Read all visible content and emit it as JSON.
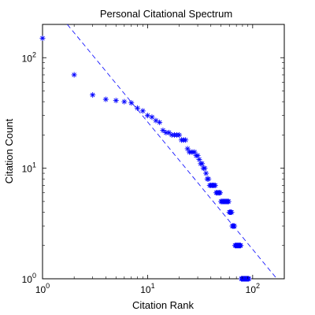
{
  "chart_data": {
    "type": "scatter",
    "title": "Personal Citational Spectrum",
    "xlabel": "Citation Rank",
    "ylabel": "Citation Count",
    "xscale": "log",
    "yscale": "log",
    "xlim": [
      1,
      200
    ],
    "ylim": [
      1,
      200
    ],
    "grid": false,
    "legend": "none",
    "x_ticks": [
      {
        "value": 1,
        "base": "10",
        "exp": "0"
      },
      {
        "value": 10,
        "base": "10",
        "exp": "1"
      },
      {
        "value": 100,
        "base": "10",
        "exp": "2"
      }
    ],
    "y_ticks": [
      {
        "value": 1,
        "base": "10",
        "exp": "0"
      },
      {
        "value": 10,
        "base": "10",
        "exp": "1"
      },
      {
        "value": 100,
        "base": "10",
        "exp": "2"
      }
    ],
    "colors": {
      "marker": "#0000ff",
      "reference_line": "#0000ff",
      "axes": "#000000"
    },
    "series": [
      {
        "marker": "asterisk",
        "points": [
          [
            1,
            150
          ],
          [
            2,
            70
          ],
          [
            3,
            46
          ],
          [
            4,
            42
          ],
          [
            5,
            41
          ],
          [
            6,
            40
          ],
          [
            7,
            39
          ],
          [
            8,
            35
          ],
          [
            9,
            33
          ],
          [
            10,
            30
          ],
          [
            11,
            29
          ],
          [
            12,
            27
          ],
          [
            13,
            26
          ],
          [
            14,
            22
          ],
          [
            15,
            21
          ],
          [
            16,
            21
          ],
          [
            17,
            20
          ],
          [
            18,
            20
          ],
          [
            19,
            20
          ],
          [
            20,
            20
          ],
          [
            21,
            18
          ],
          [
            22,
            18
          ],
          [
            23,
            18
          ],
          [
            24,
            15
          ],
          [
            25,
            14
          ],
          [
            26,
            14
          ],
          [
            27,
            14
          ],
          [
            28,
            14
          ],
          [
            29,
            13
          ],
          [
            30,
            13
          ],
          [
            31,
            12
          ],
          [
            32,
            11
          ],
          [
            33,
            11
          ],
          [
            34,
            10
          ],
          [
            35,
            10
          ],
          [
            36,
            9
          ],
          [
            37,
            8
          ],
          [
            38,
            8
          ],
          [
            39,
            7
          ],
          [
            40,
            7
          ],
          [
            41,
            7
          ],
          [
            42,
            7
          ],
          [
            43,
            7
          ],
          [
            44,
            7
          ],
          [
            45,
            6
          ],
          [
            46,
            6
          ],
          [
            47,
            6
          ],
          [
            48,
            6
          ],
          [
            49,
            6
          ],
          [
            50,
            5
          ],
          [
            51,
            5
          ],
          [
            52,
            5
          ],
          [
            53,
            5
          ],
          [
            54,
            5
          ],
          [
            55,
            5
          ],
          [
            56,
            5
          ],
          [
            57,
            5
          ],
          [
            58,
            5
          ],
          [
            59,
            5
          ],
          [
            60,
            4
          ],
          [
            61,
            4
          ],
          [
            62,
            4
          ],
          [
            63,
            4
          ],
          [
            64,
            3
          ],
          [
            65,
            3
          ],
          [
            66,
            3
          ],
          [
            67,
            3
          ],
          [
            68,
            2
          ],
          [
            69,
            2
          ],
          [
            70,
            2
          ],
          [
            71,
            2
          ],
          [
            72,
            2
          ],
          [
            73,
            2
          ],
          [
            74,
            2
          ],
          [
            75,
            2
          ],
          [
            76,
            2
          ],
          [
            77,
            2
          ],
          [
            78,
            1
          ],
          [
            79,
            1
          ],
          [
            80,
            1
          ],
          [
            81,
            1
          ],
          [
            82,
            1
          ],
          [
            83,
            1
          ],
          [
            84,
            1
          ],
          [
            85,
            1
          ],
          [
            86,
            1
          ],
          [
            87,
            1
          ],
          [
            88,
            1
          ],
          [
            89,
            1
          ],
          [
            90,
            1
          ],
          [
            91,
            1
          ],
          [
            92,
            1
          ]
        ]
      },
      {
        "style": "dashed-line",
        "points": [
          [
            1.72,
            200
          ],
          [
            170,
            1
          ]
        ]
      }
    ]
  }
}
